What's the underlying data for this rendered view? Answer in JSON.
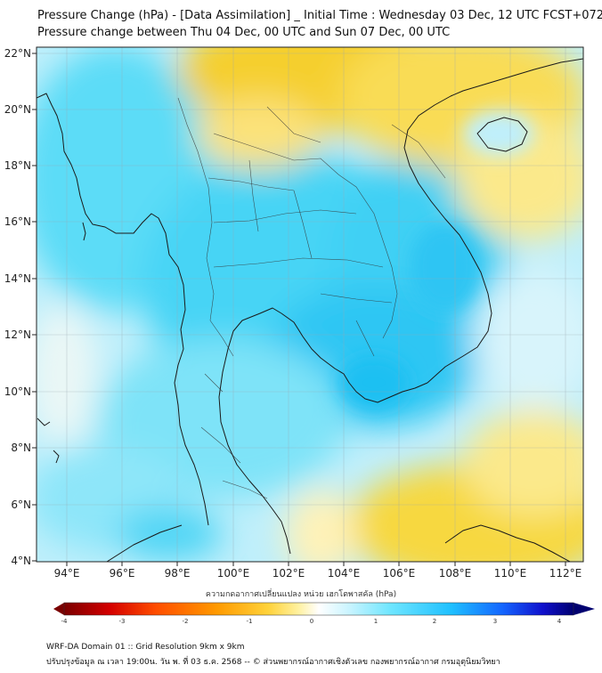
{
  "title_line1": "Pressure Change (hPa) - [Data Assimilation] _ Initial Time : Wednesday 03 Dec, 12 UTC FCST+072",
  "title_line2": "Pressure change between Thu 04 Dec, 00 UTC and Sun 07 Dec, 00 UTC",
  "lat_labels": [
    "22°N",
    "20°N",
    "18°N",
    "16°N",
    "14°N",
    "12°N",
    "10°N",
    "8°N",
    "6°N",
    "4°N"
  ],
  "lon_labels": [
    "94°E",
    "96°E",
    "98°E",
    "100°E",
    "102°E",
    "104°E",
    "106°E",
    "108°E",
    "110°E",
    "112°E"
  ],
  "colorbar": {
    "title": "ความกดอากาศเปลี่ยนแปลง หน่วย เฮกโตพาสคัล (hPa)",
    "ticks": [
      "-4",
      "-3",
      "-2",
      "-1",
      "0",
      "1",
      "2",
      "3",
      "4"
    ],
    "colors": [
      "#7a0000",
      "#d40000",
      "#ff4d00",
      "#ff9a00",
      "#ffd23a",
      "#fff1a0",
      "#ffffff",
      "#c9f4ff",
      "#6fe6ff",
      "#1fc0ff",
      "#1466ff",
      "#1010cc",
      "#000070"
    ]
  },
  "footer_line1": "WRF-DA Domain 01 :: Grid Resolution 9km x 9km",
  "footer_line2": "ปรับปรุงข้อมูล ณ เวลา 19:00น. วัน พ. ที่ 03 ธ.ค. 2568 -- © ส่วนพยากรณ์อากาศเชิงตัวเลข กองพยากรณ์อากาศ กรมอุตุนิยมวิทยา",
  "colors": {
    "ocean_light": "#c9f0fb",
    "cyan": "#48d6f6",
    "cyan_deep": "#1ec0f2",
    "yellow": "#f7d83a",
    "yellow_light": "#fdeea0",
    "coast": "#1a1a1a"
  }
}
